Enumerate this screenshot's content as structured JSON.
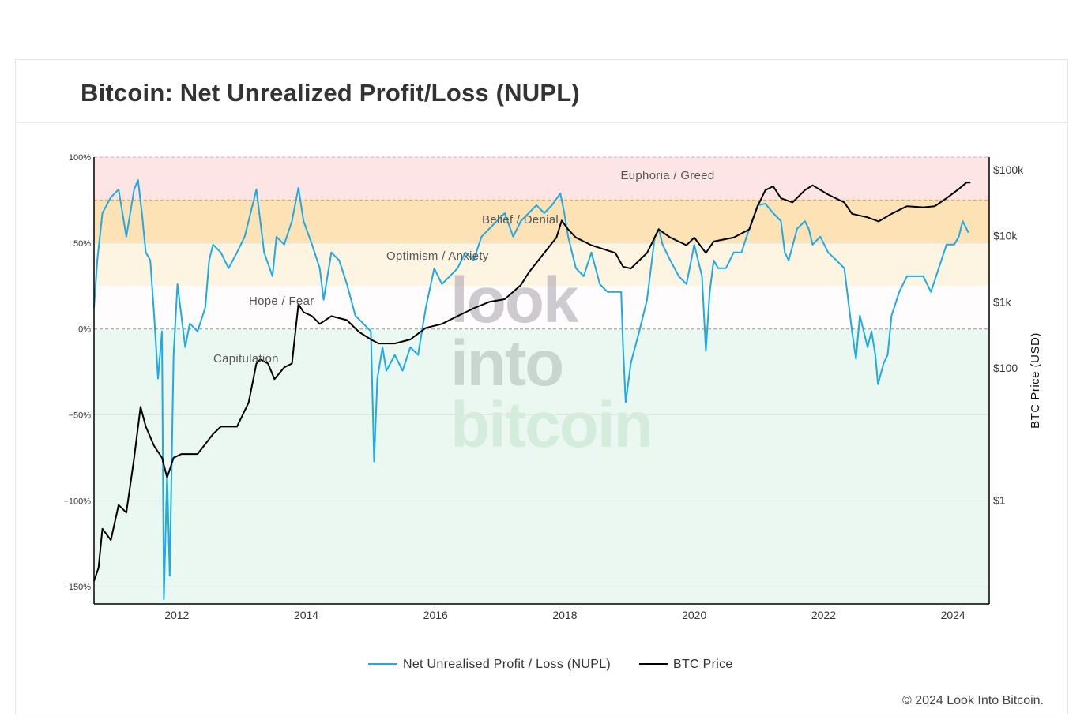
{
  "header": {
    "title": "Bitcoin: Net Unrealized Profit/Loss (NUPL)"
  },
  "footer": {
    "copyright": "© 2024 Look Into Bitcoin."
  },
  "watermark": [
    "look",
    "into",
    "bitcoin"
  ],
  "chart_data": {
    "type": "line",
    "title": "Bitcoin: Net Unrealized Profit/Loss (NUPL)",
    "xlabel": "",
    "ylabel": "",
    "y2label": "BTC Price (USD)",
    "xlim": [
      2010.72,
      2024.56
    ],
    "ylim": [
      -160,
      100
    ],
    "y2lim": [
      0.027,
      155000
    ],
    "y2_scale": "log",
    "x_ticks": [
      "2012",
      "2014",
      "2016",
      "2018",
      "2020",
      "2022",
      "2024"
    ],
    "x_tick_values": [
      2012,
      2014,
      2016,
      2018,
      2020,
      2022,
      2024
    ],
    "y_ticks": [
      "100%",
      "50%",
      "0%",
      "−50%",
      "−100%",
      "−150%"
    ],
    "y_tick_values": [
      100,
      50,
      0,
      -50,
      -100,
      -150
    ],
    "y2_ticks": [
      "$100k",
      "$10k",
      "$1k",
      "$100",
      "$1"
    ],
    "y2_tick_values": [
      100000,
      10000,
      1000,
      100,
      1
    ],
    "grid": true,
    "legend_placement": "bottom-center",
    "zones": [
      {
        "label": "Euphoria / Greed",
        "from": 75,
        "to": 100,
        "color": "#fde5e4"
      },
      {
        "label": "Belief / Denial",
        "from": 50,
        "to": 75,
        "color": "#fde2b6"
      },
      {
        "label": "Optimism / Anxiety",
        "from": 25,
        "to": 50,
        "color": "#fef4e2"
      },
      {
        "label": "Hope / Fear",
        "from": 0,
        "to": 25,
        "color": "#fefcfd"
      },
      {
        "label": "Capitulation",
        "from": -160,
        "to": 0,
        "color": "#ebf8f1"
      }
    ],
    "series": [
      {
        "name": "Net Unrealised Profit / Loss (NUPL)",
        "color": "#1eaae6",
        "axis": "left",
        "x": [
          2010.72,
          2010.77,
          2010.85,
          2010.98,
          2011.1,
          2011.16,
          2011.22,
          2011.34,
          2011.4,
          2011.46,
          2011.52,
          2011.59,
          2011.65,
          2011.71,
          2011.77,
          2011.8,
          2011.85,
          2011.89,
          2011.95,
          2012.01,
          2012.07,
          2012.13,
          2012.2,
          2012.32,
          2012.44,
          2012.5,
          2012.56,
          2012.68,
          2012.8,
          2012.93,
          2013.05,
          2013.17,
          2013.23,
          2013.29,
          2013.35,
          2013.48,
          2013.54,
          2013.66,
          2013.78,
          2013.88,
          2013.96,
          2014.09,
          2014.21,
          2014.27,
          2014.39,
          2014.51,
          2014.63,
          2014.76,
          2014.88,
          2015.0,
          2015.05,
          2015.1,
          2015.18,
          2015.24,
          2015.37,
          2015.49,
          2015.61,
          2015.73,
          2015.85,
          2015.98,
          2016.1,
          2016.22,
          2016.34,
          2016.46,
          2016.59,
          2016.71,
          2016.83,
          2017.07,
          2017.2,
          2017.32,
          2017.44,
          2017.56,
          2017.68,
          2017.8,
          2017.93,
          2017.99,
          2018.05,
          2018.17,
          2018.29,
          2018.41,
          2018.54,
          2018.66,
          2018.87,
          2018.9,
          2018.94,
          2019.02,
          2019.15,
          2019.21,
          2019.27,
          2019.39,
          2019.45,
          2019.51,
          2019.63,
          2019.76,
          2019.88,
          2020.0,
          2020.12,
          2020.18,
          2020.24,
          2020.3,
          2020.37,
          2020.49,
          2020.61,
          2020.73,
          2020.85,
          2020.98,
          2021.1,
          2021.22,
          2021.34,
          2021.4,
          2021.46,
          2021.59,
          2021.71,
          2021.77,
          2021.83,
          2021.95,
          2022.07,
          2022.2,
          2022.32,
          2022.38,
          2022.44,
          2022.5,
          2022.56,
          2022.62,
          2022.68,
          2022.74,
          2022.8,
          2022.84,
          2022.93,
          2022.99,
          2023.05,
          2023.17,
          2023.29,
          2023.54,
          2023.66,
          2023.78,
          2023.9,
          2024.02,
          2024.09,
          2024.15,
          2024.21,
          2024.24
        ],
        "values": [
          12.4,
          39.9,
          67.4,
          76.6,
          81.2,
          67.4,
          53.7,
          81.2,
          86.7,
          67.4,
          44.5,
          39.9,
          7.8,
          -28.9,
          -1.4,
          -157.3,
          -83.9,
          -143.6,
          -15.1,
          26.1,
          7.8,
          -10.6,
          3.2,
          -1.4,
          12.4,
          39.9,
          49.1,
          44.5,
          35.3,
          44.5,
          53.7,
          72.0,
          81.2,
          62.8,
          44.5,
          30.7,
          53.7,
          49.1,
          62.8,
          82.1,
          62.8,
          49.1,
          35.3,
          17.0,
          44.5,
          39.9,
          26.1,
          7.8,
          3.2,
          -1.4,
          -77.1,
          -28.9,
          -10.6,
          -24.3,
          -15.1,
          -24.3,
          -10.6,
          -15.1,
          12.4,
          35.3,
          26.1,
          30.7,
          35.3,
          44.5,
          39.9,
          53.7,
          58.3,
          67.4,
          53.7,
          62.8,
          67.4,
          72.0,
          67.4,
          72.0,
          78.9,
          67.4,
          53.7,
          35.3,
          30.7,
          44.5,
          26.1,
          21.6,
          21.6,
          -10.6,
          -42.7,
          -19.7,
          -1.4,
          7.8,
          17.0,
          53.7,
          58.3,
          49.1,
          39.9,
          30.7,
          26.1,
          49.1,
          30.7,
          -12.8,
          21.6,
          39.9,
          35.3,
          35.3,
          44.5,
          44.5,
          58.3,
          72.0,
          72.9,
          67.4,
          62.8,
          44.5,
          39.9,
          58.3,
          62.8,
          58.3,
          49.1,
          53.7,
          44.5,
          39.9,
          35.3,
          17.0,
          -1.4,
          -17.4,
          7.8,
          -1.4,
          -10.6,
          -1.4,
          -15.1,
          -32.1,
          -19.7,
          -15.1,
          7.8,
          21.6,
          30.7,
          30.7,
          21.6,
          35.3,
          49.1,
          49.1,
          53.7,
          62.8,
          58.3,
          56.0
        ]
      },
      {
        "name": "BTC Price",
        "color": "#000000",
        "axis": "right",
        "x": [
          2010.72,
          2010.79,
          2010.85,
          2010.98,
          2011.1,
          2011.22,
          2011.34,
          2011.44,
          2011.52,
          2011.65,
          2011.77,
          2011.85,
          2011.95,
          2012.07,
          2012.32,
          2012.56,
          2012.68,
          2012.93,
          2013.11,
          2013.23,
          2013.29,
          2013.41,
          2013.51,
          2013.66,
          2013.78,
          2013.88,
          2013.96,
          2014.09,
          2014.21,
          2014.39,
          2014.63,
          2014.82,
          2015.0,
          2015.12,
          2015.37,
          2015.61,
          2015.85,
          2016.1,
          2016.34,
          2016.59,
          2016.83,
          2017.07,
          2017.32,
          2017.44,
          2017.68,
          2017.87,
          2017.95,
          2018.05,
          2018.17,
          2018.41,
          2018.78,
          2018.9,
          2019.02,
          2019.27,
          2019.45,
          2019.63,
          2019.88,
          2020.0,
          2020.18,
          2020.3,
          2020.61,
          2020.85,
          2020.98,
          2021.1,
          2021.22,
          2021.34,
          2021.52,
          2021.71,
          2021.83,
          2022.07,
          2022.32,
          2022.44,
          2022.68,
          2022.85,
          2023.05,
          2023.29,
          2023.54,
          2023.72,
          2023.9,
          2024.09,
          2024.21,
          2024.27
        ],
        "values": [
          0.06,
          0.095,
          0.37,
          0.25,
          0.85,
          0.65,
          4.4,
          26,
          13,
          6.6,
          4.4,
          2.2,
          4.4,
          5.0,
          5.0,
          10,
          13,
          13,
          30,
          117,
          135,
          117,
          68,
          102,
          117,
          925,
          700,
          610,
          465,
          610,
          530,
          350,
          270,
          235,
          235,
          270,
          405,
          465,
          610,
          800,
          1000,
          1100,
          1800,
          2770,
          5500,
          9400,
          17000,
          12500,
          9400,
          7200,
          5500,
          3400,
          3200,
          5500,
          12500,
          9400,
          7200,
          9400,
          5500,
          8200,
          9400,
          12500,
          28000,
          49000,
          56000,
          37000,
          32000,
          49000,
          58000,
          42000,
          32000,
          21500,
          19000,
          16500,
          21500,
          28000,
          27000,
          28000,
          37000,
          51000,
          64000,
          64000
        ]
      }
    ]
  }
}
